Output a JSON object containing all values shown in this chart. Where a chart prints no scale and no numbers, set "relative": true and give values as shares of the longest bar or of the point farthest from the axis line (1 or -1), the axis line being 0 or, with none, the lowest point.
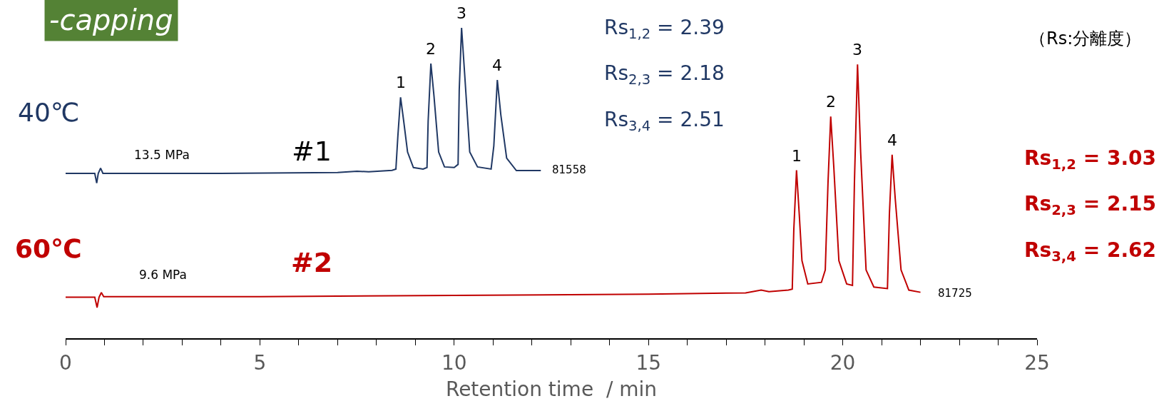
{
  "chart_data": {
    "type": "line",
    "relative": true,
    "xlabel": "Retention time  / min",
    "xlim": [
      0,
      25
    ],
    "xticks": [
      0,
      {
        "value": 1,
        "label": null
      },
      {
        "value": 2,
        "label": null
      },
      {
        "value": 3,
        "label": null
      },
      {
        "value": 4,
        "label": null
      },
      5,
      {
        "value": 6,
        "label": null
      },
      {
        "value": 7,
        "label": null
      },
      {
        "value": 8,
        "label": null
      },
      {
        "value": 9,
        "label": null
      },
      10,
      {
        "value": 11,
        "label": null
      },
      {
        "value": 12,
        "label": null
      },
      {
        "value": 13,
        "label": null
      },
      {
        "value": 14,
        "label": null
      },
      15,
      {
        "value": 16,
        "label": null
      },
      {
        "value": 17,
        "label": null
      },
      {
        "value": 18,
        "label": null
      },
      {
        "value": 19,
        "label": null
      },
      20,
      {
        "value": 21,
        "label": null
      },
      {
        "value": 22,
        "label": null
      },
      {
        "value": 23,
        "label": null
      },
      {
        "value": 24,
        "label": null
      },
      25
    ],
    "series": [
      {
        "name": "40℃",
        "color": "#203864",
        "x": [
          0,
          0.75,
          0.8,
          0.84,
          0.9,
          0.96,
          4,
          7,
          7.5,
          7.8,
          8.4,
          8.5,
          8.55,
          8.62,
          8.7,
          8.8,
          8.95,
          9.2,
          9.3,
          9.33,
          9.4,
          9.48,
          9.6,
          9.75,
          10,
          10.1,
          10.13,
          10.19,
          10.27,
          10.4,
          10.6,
          10.95,
          11.02,
          11.11,
          11.2,
          11.35,
          11.6,
          12.23
        ],
        "values": [
          0.531,
          0.531,
          0.5,
          0.531,
          0.548,
          0.531,
          0.531,
          0.534,
          0.538,
          0.536,
          0.541,
          0.545,
          0.65,
          0.776,
          0.7,
          0.6,
          0.55,
          0.545,
          0.55,
          0.7,
          0.885,
          0.78,
          0.6,
          0.552,
          0.55,
          0.56,
          0.8,
          1,
          0.85,
          0.6,
          0.552,
          0.545,
          0.62,
          0.832,
          0.72,
          0.58,
          0.54,
          0.54
        ]
      },
      {
        "name": "60℃",
        "color": "#c00000",
        "x": [
          0,
          0.75,
          0.81,
          0.86,
          0.92,
          0.98,
          5,
          10,
          15,
          17.5,
          17.9,
          18.1,
          18.6,
          18.7,
          18.74,
          18.81,
          18.88,
          18.95,
          19.1,
          19.45,
          19.55,
          19.62,
          19.69,
          19.77,
          19.9,
          20.1,
          20.25,
          20.3,
          20.38,
          20.46,
          20.6,
          20.8,
          21.15,
          21.2,
          21.27,
          21.35,
          21.5,
          21.7,
          22
        ],
        "values": [
          0.132,
          0.132,
          0.099,
          0.132,
          0.147,
          0.134,
          0.134,
          0.138,
          0.142,
          0.146,
          0.155,
          0.15,
          0.155,
          0.158,
          0.35,
          0.541,
          0.4,
          0.25,
          0.175,
          0.18,
          0.22,
          0.5,
          0.714,
          0.55,
          0.25,
          0.175,
          0.17,
          0.5,
          0.882,
          0.6,
          0.22,
          0.165,
          0.16,
          0.4,
          0.591,
          0.45,
          0.22,
          0.155,
          0.148
        ]
      }
    ],
    "annotations": [
      "-capping",
      "13.5 MPa",
      "#1",
      "81558",
      "Rs$_{1,2}$ = 2.39",
      "Rs$_{2,3}$ = 2.18",
      "Rs$_{3,4}$ = 2.51",
      "（Rs:分離度）",
      "9.6 MPa",
      "#2",
      "81725",
      "Rs$_{1,2}$ = 3.03",
      "Rs$_{2,3}$ = 2.15",
      "Rs$_{3,4}$ = 2.62",
      {
        "text": "1",
        "x": 8.62,
        "y": 0.776
      },
      {
        "text": "2",
        "x": 9.4,
        "y": 0.885
      },
      {
        "text": "3",
        "x": 10.19,
        "y": 1
      },
      {
        "text": "4",
        "x": 11.11,
        "y": 0.832
      },
      {
        "text": "1",
        "x": 18.81,
        "y": 0.541
      },
      {
        "text": "2",
        "x": 19.69,
        "y": 0.714
      },
      {
        "text": "3",
        "x": 20.38,
        "y": 0.882
      },
      {
        "text": "4",
        "x": 21.27,
        "y": 0.591
      }
    ]
  }
}
